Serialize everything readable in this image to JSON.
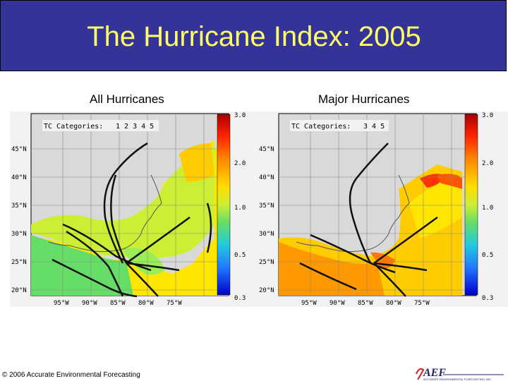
{
  "slide": {
    "title": "The Hurricane Index: 2005",
    "footer": "© 2006 Accurate Environmental Forecasting",
    "logo_text": "AEF",
    "logo_subtext": "ACCURATE ENVIRONMENTAL FORECASTING, INC.",
    "colors": {
      "title_bg": "#333399",
      "title_text": "#ffff66"
    }
  },
  "maps": [
    {
      "caption": "All Hurricanes",
      "legend_title": "TC Categories:",
      "categories": "1 2 3 4 5",
      "colorbar_labels": [
        "3.0",
        "2.0",
        "1.0",
        "0.5",
        "0.3"
      ],
      "lat_labels": [
        "45°N",
        "40°N",
        "35°N",
        "30°N",
        "25°N",
        "20°N"
      ],
      "lon_labels": [
        "95°W",
        "90°W",
        "85°W",
        "80°W",
        "75°W"
      ]
    },
    {
      "caption": "Major Hurricanes",
      "legend_title": "TC Categories:",
      "categories": "3 4 5",
      "colorbar_labels": [
        "3.0",
        "2.0",
        "1.0",
        "0.5",
        "0.3"
      ],
      "lat_labels": [
        "45°N",
        "40°N",
        "35°N",
        "30°N",
        "25°N",
        "20°N"
      ],
      "lon_labels": [
        "95°W",
        "90°W",
        "85°W",
        "80°W",
        "75°W"
      ]
    }
  ]
}
